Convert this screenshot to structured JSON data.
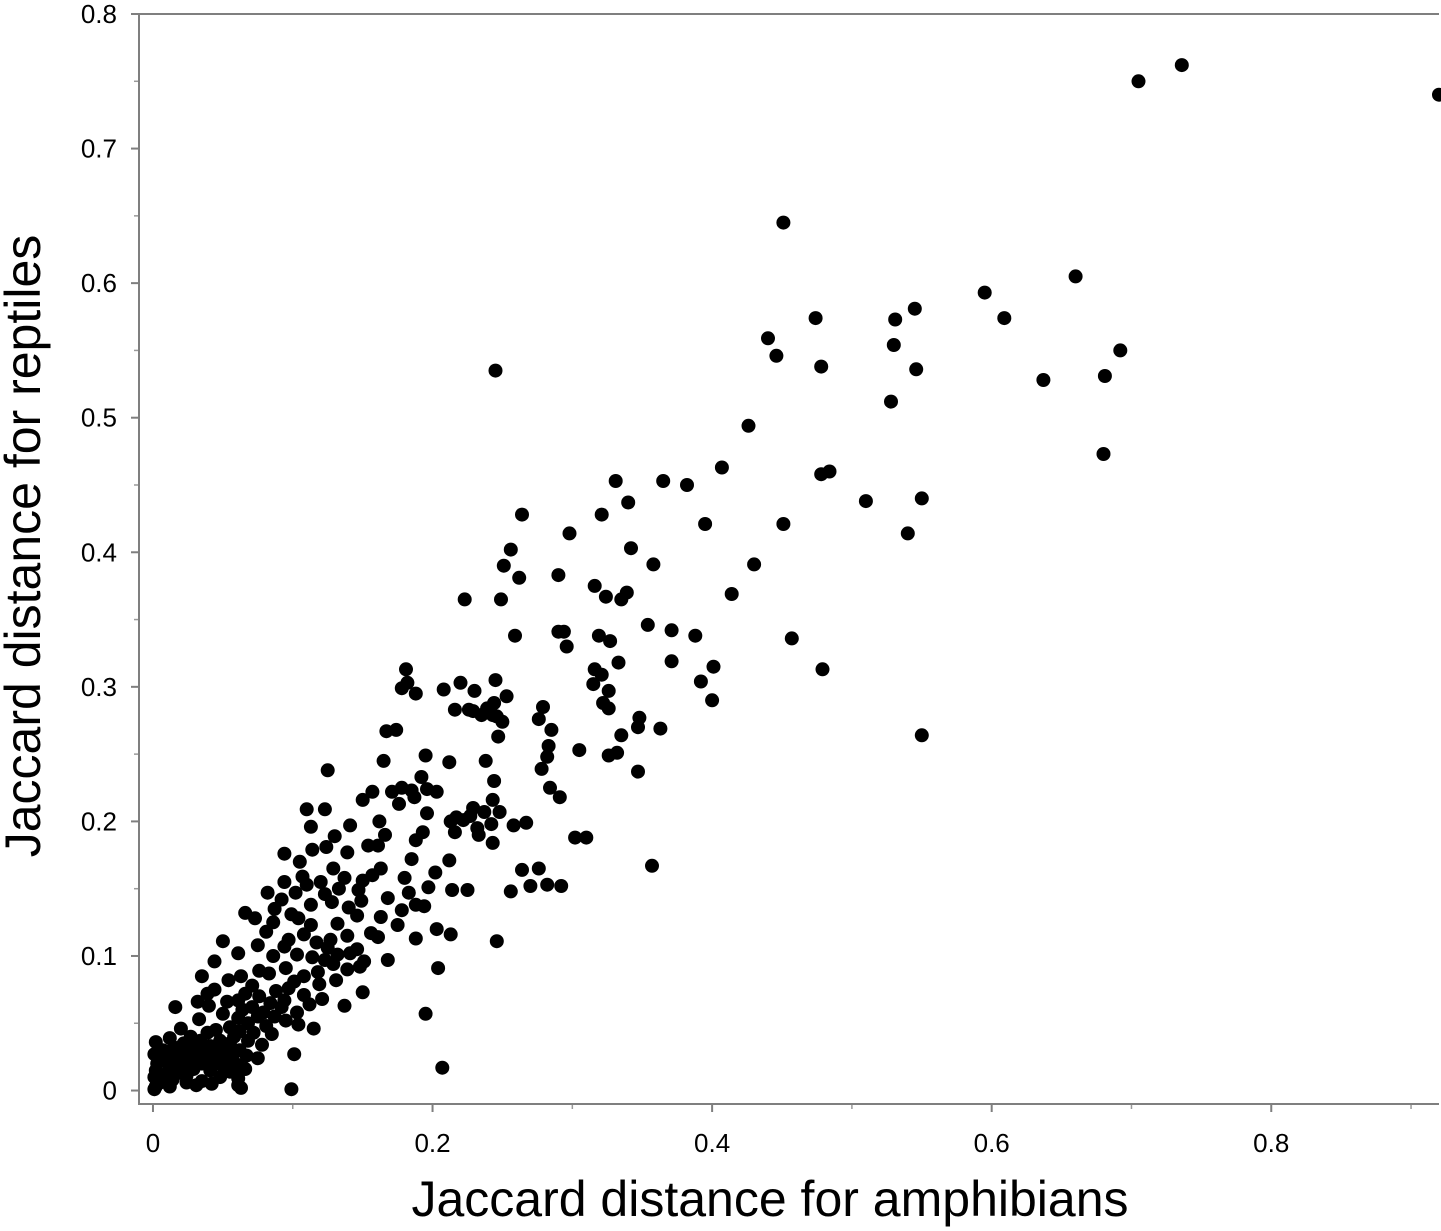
{
  "chart_data": {
    "type": "scatter",
    "xlabel": "Jaccard distance for amphibians",
    "ylabel": "Jaccard distance for reptiles",
    "xlim": [
      -0.01,
      0.92
    ],
    "ylim": [
      -0.01,
      0.8
    ],
    "x_ticks": [
      "0",
      "0.2",
      "0.4",
      "0.6",
      "0.8"
    ],
    "y_ticks": [
      "0",
      "0.1",
      "0.2",
      "0.3",
      "0.4",
      "0.5",
      "0.6",
      "0.7",
      "0.8"
    ],
    "grid": false,
    "legend": "none",
    "marker_color": "#000000",
    "points": [
      [
        0.92,
        0.74
      ],
      [
        0.736,
        0.762
      ],
      [
        0.705,
        0.75
      ],
      [
        0.451,
        0.645
      ],
      [
        0.66,
        0.605
      ],
      [
        0.595,
        0.593
      ],
      [
        0.545,
        0.581
      ],
      [
        0.609,
        0.574
      ],
      [
        0.531,
        0.573
      ],
      [
        0.474,
        0.574
      ],
      [
        0.44,
        0.559
      ],
      [
        0.53,
        0.554
      ],
      [
        0.446,
        0.546
      ],
      [
        0.692,
        0.55
      ],
      [
        0.478,
        0.538
      ],
      [
        0.546,
        0.536
      ],
      [
        0.245,
        0.535
      ],
      [
        0.681,
        0.531
      ],
      [
        0.637,
        0.528
      ],
      [
        0.528,
        0.512
      ],
      [
        0.426,
        0.494
      ],
      [
        0.68,
        0.473
      ],
      [
        0.407,
        0.463
      ],
      [
        0.484,
        0.46
      ],
      [
        0.478,
        0.458
      ],
      [
        0.331,
        0.453
      ],
      [
        0.365,
        0.453
      ],
      [
        0.382,
        0.45
      ],
      [
        0.55,
        0.44
      ],
      [
        0.51,
        0.438
      ],
      [
        0.34,
        0.437
      ],
      [
        0.321,
        0.428
      ],
      [
        0.264,
        0.428
      ],
      [
        0.451,
        0.421
      ],
      [
        0.395,
        0.421
      ],
      [
        0.54,
        0.414
      ],
      [
        0.298,
        0.414
      ],
      [
        0.342,
        0.403
      ],
      [
        0.256,
        0.402
      ],
      [
        0.358,
        0.391
      ],
      [
        0.43,
        0.391
      ],
      [
        0.251,
        0.39
      ],
      [
        0.29,
        0.383
      ],
      [
        0.262,
        0.381
      ],
      [
        0.316,
        0.375
      ],
      [
        0.339,
        0.37
      ],
      [
        0.414,
        0.369
      ],
      [
        0.324,
        0.367
      ],
      [
        0.223,
        0.365
      ],
      [
        0.249,
        0.365
      ],
      [
        0.335,
        0.365
      ],
      [
        0.354,
        0.346
      ],
      [
        0.371,
        0.342
      ],
      [
        0.294,
        0.341
      ],
      [
        0.29,
        0.341
      ],
      [
        0.388,
        0.338
      ],
      [
        0.259,
        0.338
      ],
      [
        0.319,
        0.338
      ],
      [
        0.457,
        0.336
      ],
      [
        0.327,
        0.334
      ],
      [
        0.296,
        0.33
      ],
      [
        0.371,
        0.319
      ],
      [
        0.333,
        0.318
      ],
      [
        0.316,
        0.313
      ],
      [
        0.479,
        0.313
      ],
      [
        0.401,
        0.315
      ],
      [
        0.181,
        0.313
      ],
      [
        0.321,
        0.309
      ],
      [
        0.182,
        0.303
      ],
      [
        0.22,
        0.303
      ],
      [
        0.245,
        0.305
      ],
      [
        0.392,
        0.304
      ],
      [
        0.208,
        0.298
      ],
      [
        0.315,
        0.302
      ],
      [
        0.178,
        0.299
      ],
      [
        0.326,
        0.297
      ],
      [
        0.23,
        0.297
      ],
      [
        0.188,
        0.295
      ],
      [
        0.253,
        0.293
      ],
      [
        0.4,
        0.29
      ],
      [
        0.322,
        0.288
      ],
      [
        0.244,
        0.288
      ],
      [
        0.239,
        0.284
      ],
      [
        0.279,
        0.285
      ],
      [
        0.326,
        0.284
      ],
      [
        0.216,
        0.283
      ],
      [
        0.229,
        0.282
      ],
      [
        0.226,
        0.283
      ],
      [
        0.235,
        0.279
      ],
      [
        0.243,
        0.279
      ],
      [
        0.246,
        0.278
      ],
      [
        0.348,
        0.277
      ],
      [
        0.25,
        0.274
      ],
      [
        0.276,
        0.276
      ],
      [
        0.347,
        0.27
      ],
      [
        0.363,
        0.269
      ],
      [
        0.167,
        0.267
      ],
      [
        0.174,
        0.268
      ],
      [
        0.285,
        0.268
      ],
      [
        0.247,
        0.263
      ],
      [
        0.335,
        0.264
      ],
      [
        0.55,
        0.264
      ],
      [
        0.283,
        0.256
      ],
      [
        0.305,
        0.253
      ],
      [
        0.332,
        0.251
      ],
      [
        0.326,
        0.249
      ],
      [
        0.195,
        0.249
      ],
      [
        0.282,
        0.248
      ],
      [
        0.165,
        0.245
      ],
      [
        0.238,
        0.245
      ],
      [
        0.212,
        0.244
      ],
      [
        0.278,
        0.239
      ],
      [
        0.347,
        0.237
      ],
      [
        0.125,
        0.238
      ],
      [
        0.192,
        0.233
      ],
      [
        0.244,
        0.23
      ],
      [
        0.178,
        0.225
      ],
      [
        0.185,
        0.223
      ],
      [
        0.171,
        0.222
      ],
      [
        0.157,
        0.222
      ],
      [
        0.284,
        0.225
      ],
      [
        0.196,
        0.224
      ],
      [
        0.203,
        0.222
      ],
      [
        0.187,
        0.218
      ],
      [
        0.291,
        0.218
      ],
      [
        0.243,
        0.216
      ],
      [
        0.15,
        0.216
      ],
      [
        0.176,
        0.213
      ],
      [
        0.229,
        0.21
      ],
      [
        0.11,
        0.209
      ],
      [
        0.123,
        0.209
      ],
      [
        0.237,
        0.207
      ],
      [
        0.196,
        0.206
      ],
      [
        0.248,
        0.207
      ],
      [
        0.227,
        0.204
      ],
      [
        0.217,
        0.203
      ],
      [
        0.222,
        0.201
      ],
      [
        0.242,
        0.198
      ],
      [
        0.267,
        0.199
      ],
      [
        0.162,
        0.2
      ],
      [
        0.113,
        0.196
      ],
      [
        0.141,
        0.197
      ],
      [
        0.258,
        0.197
      ],
      [
        0.232,
        0.195
      ],
      [
        0.213,
        0.2
      ],
      [
        0.233,
        0.19
      ],
      [
        0.166,
        0.19
      ],
      [
        0.216,
        0.192
      ],
      [
        0.193,
        0.192
      ],
      [
        0.302,
        0.188
      ],
      [
        0.31,
        0.188
      ],
      [
        0.13,
        0.189
      ],
      [
        0.188,
        0.186
      ],
      [
        0.243,
        0.184
      ],
      [
        0.161,
        0.182
      ],
      [
        0.154,
        0.182
      ],
      [
        0.124,
        0.181
      ],
      [
        0.094,
        0.176
      ],
      [
        0.114,
        0.179
      ],
      [
        0.139,
        0.177
      ],
      [
        0.105,
        0.17
      ],
      [
        0.185,
        0.172
      ],
      [
        0.212,
        0.171
      ],
      [
        0.163,
        0.165
      ],
      [
        0.129,
        0.165
      ],
      [
        0.202,
        0.162
      ],
      [
        0.157,
        0.16
      ],
      [
        0.107,
        0.159
      ],
      [
        0.137,
        0.158
      ],
      [
        0.18,
        0.158
      ],
      [
        0.264,
        0.164
      ],
      [
        0.276,
        0.165
      ],
      [
        0.357,
        0.167
      ],
      [
        0.15,
        0.156
      ],
      [
        0.12,
        0.155
      ],
      [
        0.094,
        0.155
      ],
      [
        0.11,
        0.153
      ],
      [
        0.27,
        0.152
      ],
      [
        0.282,
        0.153
      ],
      [
        0.292,
        0.152
      ],
      [
        0.197,
        0.151
      ],
      [
        0.214,
        0.149
      ],
      [
        0.225,
        0.149
      ],
      [
        0.256,
        0.148
      ],
      [
        0.133,
        0.15
      ],
      [
        0.147,
        0.149
      ],
      [
        0.183,
        0.147
      ],
      [
        0.102,
        0.147
      ],
      [
        0.082,
        0.147
      ],
      [
        0.123,
        0.146
      ],
      [
        0.092,
        0.142
      ],
      [
        0.168,
        0.143
      ],
      [
        0.149,
        0.141
      ],
      [
        0.128,
        0.14
      ],
      [
        0.113,
        0.138
      ],
      [
        0.188,
        0.138
      ],
      [
        0.194,
        0.137
      ],
      [
        0.14,
        0.136
      ],
      [
        0.087,
        0.135
      ],
      [
        0.178,
        0.134
      ],
      [
        0.066,
        0.132
      ],
      [
        0.099,
        0.131
      ],
      [
        0.146,
        0.13
      ],
      [
        0.163,
        0.129
      ],
      [
        0.104,
        0.128
      ],
      [
        0.073,
        0.128
      ],
      [
        0.086,
        0.125
      ],
      [
        0.132,
        0.124
      ],
      [
        0.113,
        0.123
      ],
      [
        0.175,
        0.123
      ],
      [
        0.203,
        0.12
      ],
      [
        0.156,
        0.117
      ],
      [
        0.081,
        0.118
      ],
      [
        0.108,
        0.116
      ],
      [
        0.213,
        0.116
      ],
      [
        0.139,
        0.115
      ],
      [
        0.161,
        0.114
      ],
      [
        0.188,
        0.113
      ],
      [
        0.097,
        0.112
      ],
      [
        0.246,
        0.111
      ],
      [
        0.127,
        0.112
      ],
      [
        0.05,
        0.111
      ],
      [
        0.117,
        0.11
      ],
      [
        0.075,
        0.108
      ],
      [
        0.094,
        0.107
      ],
      [
        0.125,
        0.106
      ],
      [
        0.146,
        0.105
      ],
      [
        0.141,
        0.102
      ],
      [
        0.061,
        0.102
      ],
      [
        0.103,
        0.101
      ],
      [
        0.132,
        0.101
      ],
      [
        0.086,
        0.1
      ],
      [
        0.114,
        0.099
      ],
      [
        0.151,
        0.096
      ],
      [
        0.123,
        0.097
      ],
      [
        0.168,
        0.097
      ],
      [
        0.044,
        0.096
      ],
      [
        0.129,
        0.094
      ],
      [
        0.204,
        0.091
      ],
      [
        0.148,
        0.092
      ],
      [
        0.095,
        0.091
      ],
      [
        0.076,
        0.089
      ],
      [
        0.139,
        0.09
      ],
      [
        0.083,
        0.087
      ],
      [
        0.118,
        0.088
      ],
      [
        0.108,
        0.085
      ],
      [
        0.063,
        0.085
      ],
      [
        0.035,
        0.085
      ],
      [
        0.054,
        0.082
      ],
      [
        0.131,
        0.082
      ],
      [
        0.101,
        0.081
      ],
      [
        0.071,
        0.078
      ],
      [
        0.119,
        0.079
      ],
      [
        0.097,
        0.076
      ],
      [
        0.088,
        0.074
      ],
      [
        0.044,
        0.075
      ],
      [
        0.15,
        0.073
      ],
      [
        0.066,
        0.072
      ],
      [
        0.039,
        0.072
      ],
      [
        0.108,
        0.071
      ],
      [
        0.076,
        0.07
      ],
      [
        0.121,
        0.068
      ],
      [
        0.094,
        0.067
      ],
      [
        0.061,
        0.067
      ],
      [
        0.053,
        0.066
      ],
      [
        0.032,
        0.066
      ],
      [
        0.084,
        0.065
      ],
      [
        0.112,
        0.064
      ],
      [
        0.137,
        0.063
      ],
      [
        0.04,
        0.063
      ],
      [
        0.071,
        0.062
      ],
      [
        0.092,
        0.062
      ],
      [
        0.016,
        0.062
      ],
      [
        0.064,
        0.06
      ],
      [
        0.079,
        0.058
      ],
      [
        0.103,
        0.058
      ],
      [
        0.05,
        0.057
      ],
      [
        0.195,
        0.057
      ],
      [
        0.075,
        0.055
      ],
      [
        0.087,
        0.055
      ],
      [
        0.061,
        0.054
      ],
      [
        0.095,
        0.052
      ],
      [
        0.033,
        0.053
      ],
      [
        0.068,
        0.05
      ],
      [
        0.104,
        0.049
      ],
      [
        0.081,
        0.048
      ],
      [
        0.055,
        0.047
      ],
      [
        0.115,
        0.046
      ],
      [
        0.045,
        0.045
      ],
      [
        0.02,
        0.046
      ],
      [
        0.062,
        0.044
      ],
      [
        0.072,
        0.043
      ],
      [
        0.039,
        0.043
      ],
      [
        0.085,
        0.042
      ],
      [
        0.058,
        0.04
      ],
      [
        0.027,
        0.04
      ],
      [
        0.012,
        0.039
      ],
      [
        0.048,
        0.037
      ],
      [
        0.068,
        0.037
      ],
      [
        0.034,
        0.037
      ],
      [
        0.002,
        0.036
      ],
      [
        0.022,
        0.035
      ],
      [
        0.055,
        0.035
      ],
      [
        0.078,
        0.034
      ],
      [
        0.041,
        0.033
      ],
      [
        0.015,
        0.032
      ],
      [
        0.03,
        0.031
      ],
      [
        0.047,
        0.031
      ],
      [
        0.062,
        0.03
      ],
      [
        0.007,
        0.03
      ],
      [
        0.018,
        0.029
      ],
      [
        0.035,
        0.029
      ],
      [
        0.052,
        0.028
      ],
      [
        0.025,
        0.028
      ],
      [
        0.101,
        0.027
      ],
      [
        0.001,
        0.027
      ],
      [
        0.042,
        0.026
      ],
      [
        0.057,
        0.026
      ],
      [
        0.013,
        0.026
      ],
      [
        0.067,
        0.026
      ],
      [
        0.031,
        0.025
      ],
      [
        0.02,
        0.024
      ],
      [
        0.048,
        0.024
      ],
      [
        0.075,
        0.024
      ],
      [
        0.038,
        0.023
      ],
      [
        0.009,
        0.023
      ],
      [
        0.027,
        0.022
      ],
      [
        0.055,
        0.022
      ],
      [
        0.015,
        0.021
      ],
      [
        0.043,
        0.02
      ],
      [
        0.035,
        0.02
      ],
      [
        0.003,
        0.02
      ],
      [
        0.061,
        0.019
      ],
      [
        0.022,
        0.019
      ],
      [
        0.05,
        0.018
      ],
      [
        0.012,
        0.017
      ],
      [
        0.207,
        0.017
      ],
      [
        0.029,
        0.016
      ],
      [
        0.066,
        0.016
      ],
      [
        0.002,
        0.015
      ],
      [
        0.041,
        0.015
      ],
      [
        0.055,
        0.014
      ],
      [
        0.018,
        0.013
      ],
      [
        0.009,
        0.012
      ],
      [
        0.024,
        0.011
      ],
      [
        0.001,
        0.01
      ],
      [
        0.048,
        0.01
      ],
      [
        0.061,
        0.009
      ],
      [
        0.014,
        0.008
      ],
      [
        0.035,
        0.007
      ],
      [
        0.005,
        0.006
      ],
      [
        0.024,
        0.006
      ],
      [
        0.042,
        0.005
      ],
      [
        0.061,
        0.004
      ],
      [
        0.002,
        0.003
      ],
      [
        0.031,
        0.004
      ],
      [
        0.012,
        0.003
      ],
      [
        0.001,
        0.001
      ],
      [
        0.063,
        0.002
      ],
      [
        0.099,
        0.001
      ]
    ]
  }
}
